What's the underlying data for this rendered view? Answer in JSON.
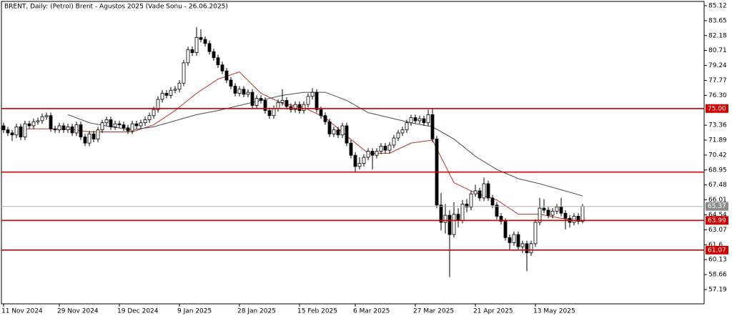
{
  "chart_data": {
    "type": "candlestick",
    "title": "BRENT, Daily:  (Petrol) Brent - Agustos 2025 (Vade Sonu - 26.06.2025)",
    "categories": [
      "11 Nov 2024",
      null,
      null,
      null,
      null,
      null,
      null,
      null,
      null,
      null,
      null,
      null,
      null,
      "29 Nov 2024",
      null,
      null,
      null,
      null,
      null,
      null,
      null,
      null,
      null,
      null,
      null,
      null,
      null,
      "19 Dec 2024",
      null,
      null,
      null,
      null,
      null,
      null,
      null,
      null,
      null,
      null,
      null,
      null,
      null,
      "9 Jan 2025",
      null,
      null,
      null,
      null,
      null,
      null,
      null,
      null,
      null,
      null,
      null,
      null,
      null,
      "28 Jan 2025",
      null,
      null,
      null,
      null,
      null,
      null,
      null,
      null,
      null,
      null,
      null,
      null,
      null,
      "15 Feb 2025",
      null,
      null,
      null,
      null,
      null,
      null,
      null,
      null,
      null,
      null,
      null,
      null,
      "6 Mar 2025",
      null,
      null,
      null,
      null,
      null,
      null,
      null,
      null,
      null,
      null,
      null,
      null,
      null,
      "27 Mar 2025",
      null,
      null,
      null,
      null,
      null,
      null,
      null,
      null,
      null,
      null,
      null,
      null,
      null,
      "21 Apr 2025",
      null,
      null,
      null,
      null,
      null,
      null,
      null,
      null,
      null,
      null,
      null,
      null,
      null,
      "13 May 2025",
      null,
      null,
      null,
      null,
      null,
      null,
      null,
      null,
      null,
      null,
      null
    ],
    "ohlc": [
      [
        73.3,
        73.6,
        72.6,
        72.9
      ],
      [
        72.9,
        73.2,
        72.3,
        72.6
      ],
      [
        72.6,
        72.9,
        71.8,
        72.4
      ],
      [
        72.4,
        73.5,
        72.1,
        73.2
      ],
      [
        73.2,
        73.5,
        71.9,
        72.2
      ],
      [
        72.2,
        73.8,
        71.9,
        73.5
      ],
      [
        73.5,
        73.8,
        73.0,
        73.3
      ],
      [
        73.3,
        74.0,
        73.0,
        73.7
      ],
      [
        73.7,
        74.1,
        73.4,
        73.8
      ],
      [
        73.8,
        74.5,
        73.5,
        74.2
      ],
      [
        74.2,
        74.6,
        73.9,
        74.3
      ],
      [
        74.3,
        74.6,
        72.7,
        73.0
      ],
      [
        73.0,
        73.3,
        72.6,
        72.9
      ],
      [
        72.9,
        73.6,
        72.6,
        73.3
      ],
      [
        73.3,
        73.6,
        72.6,
        72.9
      ],
      [
        72.9,
        73.5,
        72.6,
        73.2
      ],
      [
        73.2,
        73.5,
        72.3,
        72.6
      ],
      [
        72.6,
        73.7,
        72.3,
        73.4
      ],
      [
        73.4,
        73.7,
        71.9,
        72.2
      ],
      [
        72.2,
        72.5,
        71.3,
        71.6
      ],
      [
        71.6,
        72.8,
        71.3,
        72.5
      ],
      [
        72.5,
        72.8,
        71.7,
        72.0
      ],
      [
        72.0,
        73.2,
        71.7,
        72.9
      ],
      [
        72.9,
        73.9,
        72.6,
        73.6
      ],
      [
        73.6,
        74.2,
        73.3,
        73.9
      ],
      [
        73.9,
        74.2,
        72.9,
        73.2
      ],
      [
        73.2,
        73.8,
        72.9,
        73.5
      ],
      [
        73.5,
        73.8,
        73.1,
        73.4
      ],
      [
        73.4,
        73.7,
        72.8,
        73.1
      ],
      [
        73.1,
        73.4,
        72.5,
        72.8
      ],
      [
        72.8,
        73.8,
        72.5,
        73.5
      ],
      [
        73.5,
        73.8,
        73.0,
        73.3
      ],
      [
        73.3,
        73.9,
        73.0,
        73.6
      ],
      [
        73.6,
        74.2,
        73.3,
        73.9
      ],
      [
        73.9,
        74.6,
        73.6,
        74.3
      ],
      [
        74.3,
        75.2,
        74.0,
        74.9
      ],
      [
        74.9,
        76.2,
        74.6,
        75.9
      ],
      [
        75.9,
        76.8,
        75.6,
        76.5
      ],
      [
        76.5,
        76.8,
        76.0,
        76.3
      ],
      [
        76.3,
        77.1,
        76.0,
        76.8
      ],
      [
        76.8,
        77.2,
        76.5,
        76.9
      ],
      [
        76.9,
        77.8,
        76.6,
        77.5
      ],
      [
        77.5,
        79.8,
        77.2,
        79.5
      ],
      [
        79.5,
        81.1,
        79.2,
        80.8
      ],
      [
        80.8,
        81.1,
        80.2,
        80.5
      ],
      [
        80.5,
        83.0,
        80.2,
        82.0
      ],
      [
        82.0,
        82.8,
        81.5,
        81.8
      ],
      [
        81.8,
        82.1,
        81.1,
        81.4
      ],
      [
        81.4,
        81.7,
        80.3,
        80.6
      ],
      [
        80.6,
        80.9,
        79.7,
        80.0
      ],
      [
        80.0,
        80.3,
        79.0,
        79.3
      ],
      [
        79.3,
        79.6,
        78.4,
        78.7
      ],
      [
        78.7,
        79.0,
        77.5,
        77.8
      ],
      [
        77.8,
        78.1,
        76.9,
        77.2
      ],
      [
        77.2,
        77.5,
        76.2,
        76.5
      ],
      [
        76.5,
        77.2,
        76.2,
        76.9
      ],
      [
        76.9,
        77.2,
        76.1,
        76.4
      ],
      [
        76.4,
        76.9,
        76.1,
        76.6
      ],
      [
        76.6,
        76.9,
        75.0,
        75.3
      ],
      [
        75.3,
        76.3,
        75.0,
        76.0
      ],
      [
        76.0,
        76.3,
        75.5,
        75.8
      ],
      [
        75.8,
        76.1,
        74.5,
        74.8
      ],
      [
        74.8,
        75.1,
        74.0,
        74.3
      ],
      [
        74.3,
        75.3,
        74.0,
        75.0
      ],
      [
        75.0,
        75.9,
        74.7,
        75.6
      ],
      [
        75.6,
        76.9,
        75.3,
        75.8
      ],
      [
        75.8,
        76.1,
        74.9,
        75.2
      ],
      [
        75.2,
        75.5,
        74.6,
        74.9
      ],
      [
        74.9,
        75.7,
        74.6,
        75.4
      ],
      [
        75.4,
        75.7,
        74.5,
        74.8
      ],
      [
        74.8,
        75.7,
        74.5,
        75.4
      ],
      [
        75.4,
        76.5,
        75.1,
        76.2
      ],
      [
        76.2,
        77.0,
        75.9,
        76.6
      ],
      [
        76.6,
        76.9,
        74.6,
        74.9
      ],
      [
        74.9,
        75.2,
        74.0,
        74.3
      ],
      [
        74.3,
        74.6,
        73.4,
        73.7
      ],
      [
        73.7,
        74.0,
        72.2,
        72.5
      ],
      [
        72.5,
        73.2,
        72.2,
        72.9
      ],
      [
        72.9,
        73.2,
        72.1,
        72.4
      ],
      [
        72.4,
        73.6,
        72.1,
        73.3
      ],
      [
        73.3,
        73.6,
        71.3,
        71.6
      ],
      [
        71.6,
        71.9,
        70.1,
        70.4
      ],
      [
        70.4,
        70.7,
        68.7,
        69.3
      ],
      [
        69.3,
        70.2,
        69.0,
        69.6
      ],
      [
        69.6,
        70.5,
        69.3,
        70.2
      ],
      [
        70.2,
        71.1,
        69.9,
        70.8
      ],
      [
        70.8,
        71.1,
        69.0,
        70.4
      ],
      [
        70.4,
        71.1,
        70.1,
        70.8
      ],
      [
        70.8,
        71.6,
        70.5,
        71.3
      ],
      [
        71.3,
        71.6,
        70.6,
        70.9
      ],
      [
        70.9,
        71.7,
        70.6,
        71.4
      ],
      [
        71.4,
        72.4,
        71.1,
        72.1
      ],
      [
        72.1,
        72.9,
        71.8,
        72.6
      ],
      [
        72.6,
        73.2,
        72.3,
        72.9
      ],
      [
        72.9,
        73.9,
        72.6,
        73.6
      ],
      [
        73.6,
        74.4,
        73.3,
        74.1
      ],
      [
        74.1,
        74.4,
        73.5,
        73.8
      ],
      [
        73.8,
        74.3,
        73.5,
        74.0
      ],
      [
        74.0,
        74.3,
        73.3,
        73.6
      ],
      [
        73.6,
        74.9,
        73.3,
        74.4
      ],
      [
        74.4,
        75.0,
        71.7,
        72.0
      ],
      [
        72.0,
        72.3,
        65.2,
        65.5
      ],
      [
        65.5,
        66.7,
        63.0,
        63.8
      ],
      [
        63.8,
        65.6,
        62.7,
        64.5
      ],
      [
        64.5,
        65.0,
        58.4,
        62.6
      ],
      [
        62.6,
        65.8,
        62.3,
        64.6
      ],
      [
        64.6,
        65.2,
        63.3,
        64.0
      ],
      [
        64.0,
        66.0,
        63.7,
        65.6
      ],
      [
        65.6,
        66.1,
        64.8,
        65.3
      ],
      [
        65.3,
        66.9,
        65.0,
        66.6
      ],
      [
        66.6,
        67.5,
        66.3,
        66.9
      ],
      [
        66.9,
        67.2,
        65.9,
        66.2
      ],
      [
        66.2,
        68.2,
        65.9,
        67.6
      ],
      [
        67.6,
        67.9,
        65.9,
        66.2
      ],
      [
        66.2,
        66.5,
        65.2,
        65.5
      ],
      [
        65.5,
        65.8,
        64.1,
        64.4
      ],
      [
        64.4,
        64.7,
        63.6,
        63.9
      ],
      [
        63.9,
        64.2,
        62.0,
        62.3
      ],
      [
        62.3,
        62.6,
        61.1,
        61.8
      ],
      [
        61.8,
        62.9,
        61.5,
        62.6
      ],
      [
        62.6,
        62.9,
        61.1,
        61.4
      ],
      [
        61.4,
        62.0,
        60.8,
        61.7
      ],
      [
        61.7,
        62.0,
        59.0,
        60.8
      ],
      [
        60.8,
        62.0,
        60.5,
        61.7
      ],
      [
        61.7,
        64.1,
        61.4,
        63.8
      ],
      [
        63.8,
        66.2,
        63.5,
        65.2
      ],
      [
        65.2,
        66.1,
        64.7,
        65.0
      ],
      [
        65.0,
        65.3,
        64.2,
        64.5
      ],
      [
        64.5,
        65.2,
        64.2,
        64.9
      ],
      [
        64.9,
        65.6,
        64.6,
        65.3
      ],
      [
        65.3,
        66.2,
        64.4,
        64.7
      ],
      [
        64.7,
        65.0,
        63.1,
        64.2
      ],
      [
        64.2,
        64.5,
        63.3,
        63.8
      ],
      [
        63.8,
        64.7,
        63.5,
        64.4
      ],
      [
        64.4,
        64.7,
        63.6,
        63.9
      ],
      [
        63.9,
        65.6,
        63.7,
        65.37
      ]
    ],
    "up_color": "#ffffff",
    "down_color": "#000000",
    "series": [
      {
        "color": "#b8322c",
        "x": [
          5,
          10,
          15,
          20,
          25,
          30,
          35,
          40,
          45,
          50,
          55,
          60,
          65,
          70,
          75,
          80,
          85,
          90,
          95,
          100,
          105,
          110,
          115,
          120,
          125,
          130,
          135
        ],
        "values": [
          73.0,
          73.0,
          73.0,
          72.7,
          72.7,
          72.7,
          73.4,
          74.8,
          76.5,
          77.9,
          78.6,
          76.5,
          75.5,
          75.1,
          74.1,
          72.3,
          70.6,
          70.6,
          71.6,
          71.9,
          67.7,
          66.7,
          66.0,
          64.6,
          64.6,
          64.2,
          63.9
        ]
      },
      {
        "color": "#4a4a5a",
        "x": [
          15,
          20,
          25,
          30,
          35,
          40,
          45,
          50,
          55,
          60,
          65,
          70,
          75,
          80,
          85,
          90,
          95,
          100,
          105,
          110,
          115,
          120,
          125,
          130,
          135
        ],
        "values": [
          74.4,
          73.6,
          73.2,
          72.9,
          73.2,
          73.8,
          74.4,
          74.8,
          75.3,
          75.8,
          76.3,
          76.6,
          76.6,
          75.8,
          74.6,
          74.1,
          73.6,
          73.2,
          72.0,
          70.3,
          69.0,
          68.1,
          67.6,
          67.0,
          66.4
        ]
      }
    ],
    "ylim": [
      55.78,
      85.54
    ],
    "yticks": [
      85.12,
      83.65,
      82.18,
      80.71,
      79.24,
      77.77,
      {
        "value": 76.3,
        "label": "76.30"
      },
      73.36,
      71.89,
      70.42,
      68.95,
      67.48,
      66.01,
      64.54,
      63.07,
      61.6,
      60.13,
      58.66,
      57.19
    ],
    "hlines": [
      {
        "value": 75,
        "label": "75.00"
      },
      68.75,
      63.99,
      61.07
    ],
    "hline_color": "#d40000",
    "last_price": 65.37,
    "last_price_color": "#8c8c8c"
  }
}
